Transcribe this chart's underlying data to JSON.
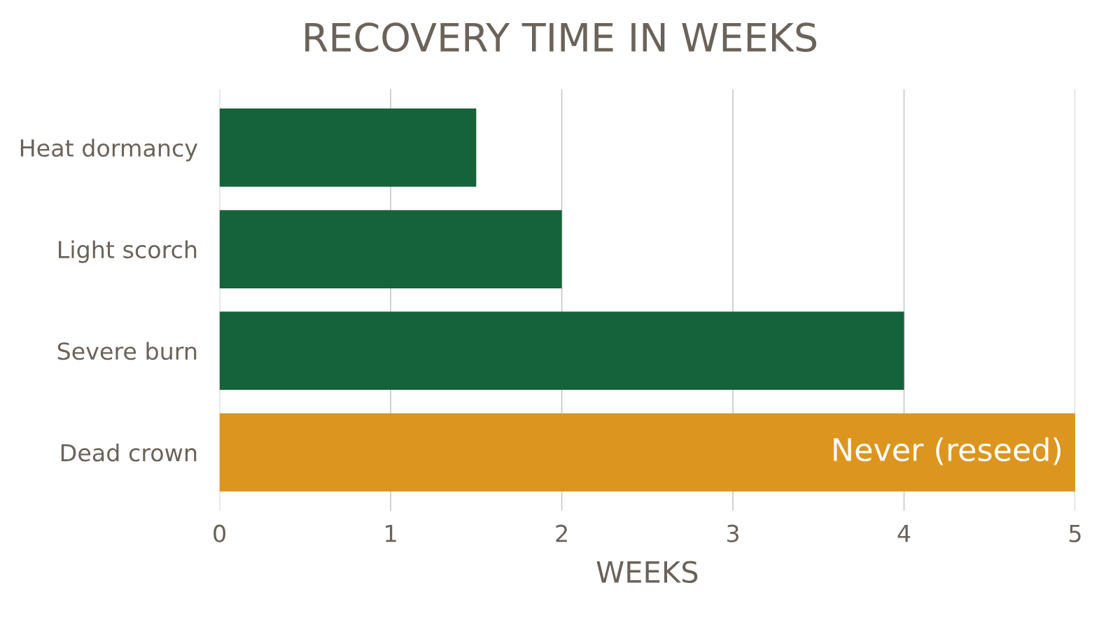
{
  "chart_data": {
    "type": "bar",
    "orientation": "horizontal",
    "title": "RECOVERY TIME IN WEEKS",
    "xlabel": "WEEKS",
    "categories": [
      "Heat dormancy",
      "Light scorch",
      "Severe burn",
      "Dead crown"
    ],
    "values": [
      1.5,
      2,
      4,
      5
    ],
    "colors": [
      "#15633b",
      "#15633b",
      "#15633b",
      "#dc951e"
    ],
    "value_labels": [
      null,
      null,
      null,
      "Never (reseed)"
    ],
    "xlim": [
      0,
      5
    ],
    "xticks": [
      0,
      1,
      2,
      3,
      4,
      5
    ],
    "grid": "x",
    "legend": false
  }
}
